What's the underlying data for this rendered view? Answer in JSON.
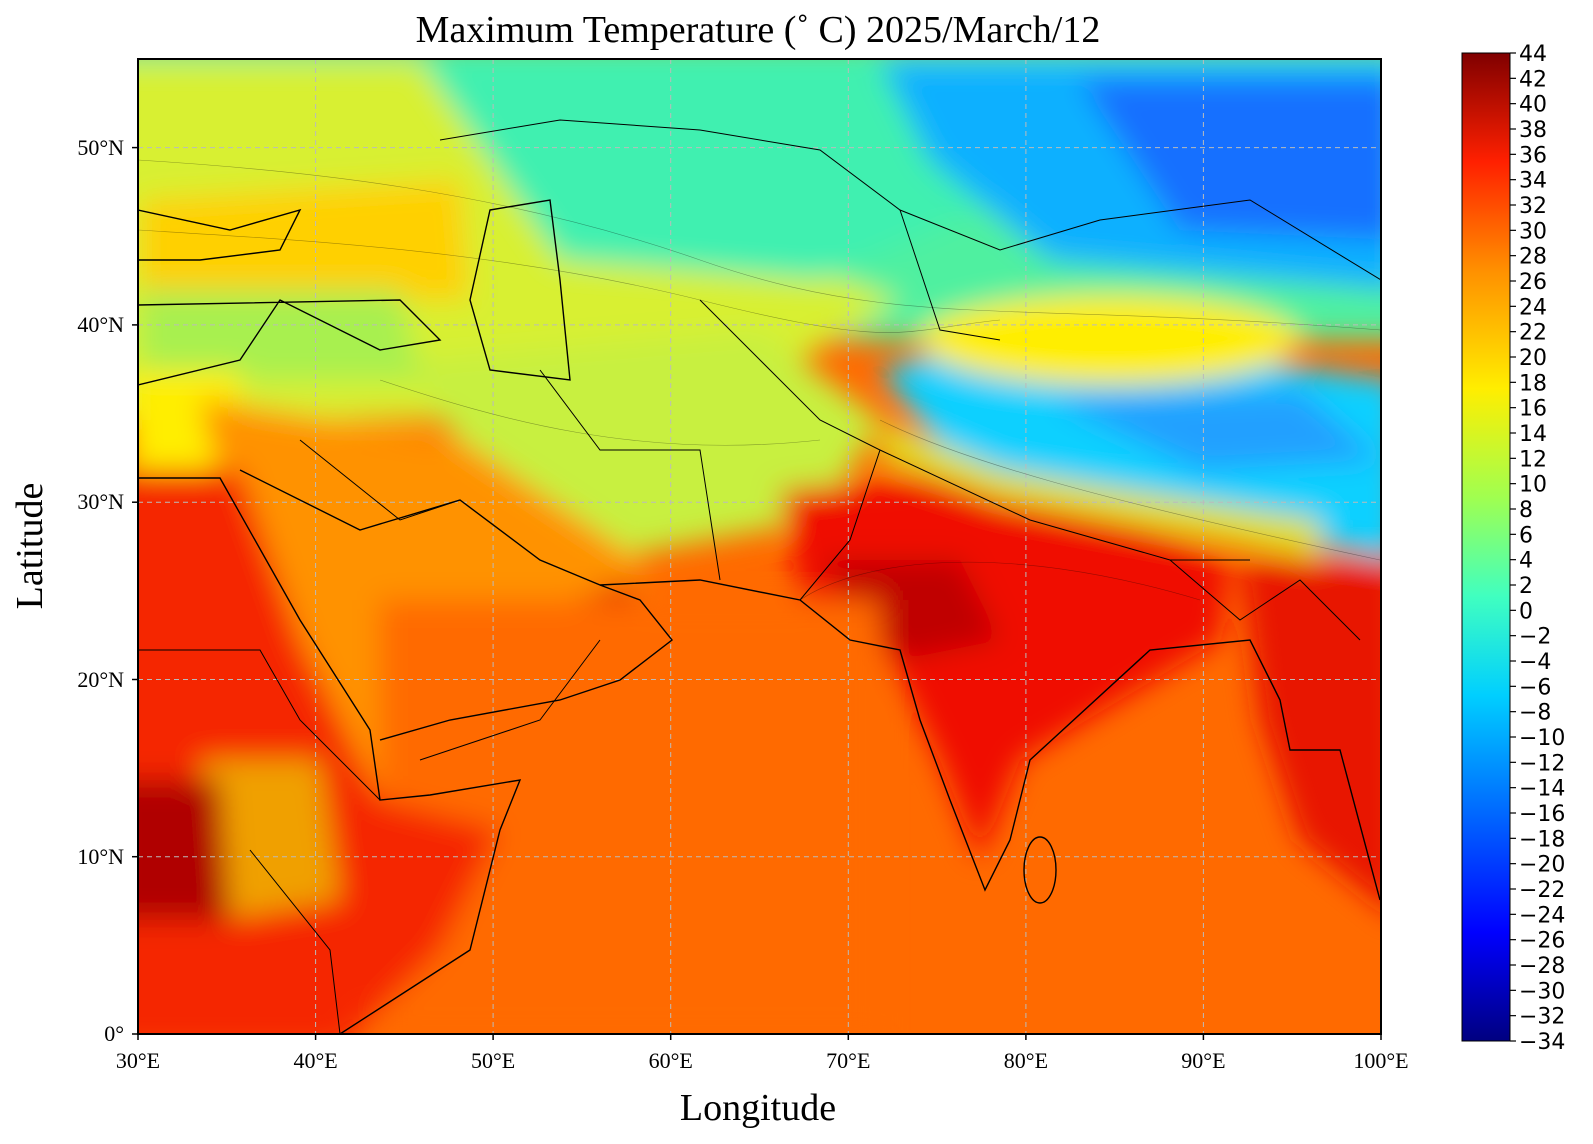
{
  "title": "Maximum Temperature (˚ C)  2025/March/12",
  "xlabel": "Longitude",
  "ylabel": "Latitude",
  "x_ticks": [
    "30°E",
    "40°E",
    "50°E",
    "60°E",
    "70°E",
    "80°E",
    "90°E",
    "100°E"
  ],
  "y_ticks": [
    "0°",
    "10°N",
    "20°N",
    "30°N",
    "40°N",
    "50°N"
  ],
  "colorbar_labels": [
    "44",
    "42",
    "40",
    "38",
    "36",
    "34",
    "32",
    "30",
    "28",
    "26",
    "24",
    "22",
    "20",
    "18",
    "16",
    "14",
    "12",
    "10",
    "8",
    "6",
    "4",
    "2",
    "0",
    "−2",
    "−4",
    "−6",
    "−8",
    "−10",
    "−12",
    "−14",
    "−16",
    "−18",
    "−20",
    "−22",
    "−24",
    "−26",
    "−28",
    "−30",
    "−32",
    "−34"
  ],
  "map_extent": {
    "lon": [
      30,
      100
    ],
    "lat": [
      0,
      55
    ]
  },
  "colorbar_range": [
    -34,
    44
  ],
  "colormap": "jet",
  "grid": true,
  "ocean_color": "#ff6a00"
}
